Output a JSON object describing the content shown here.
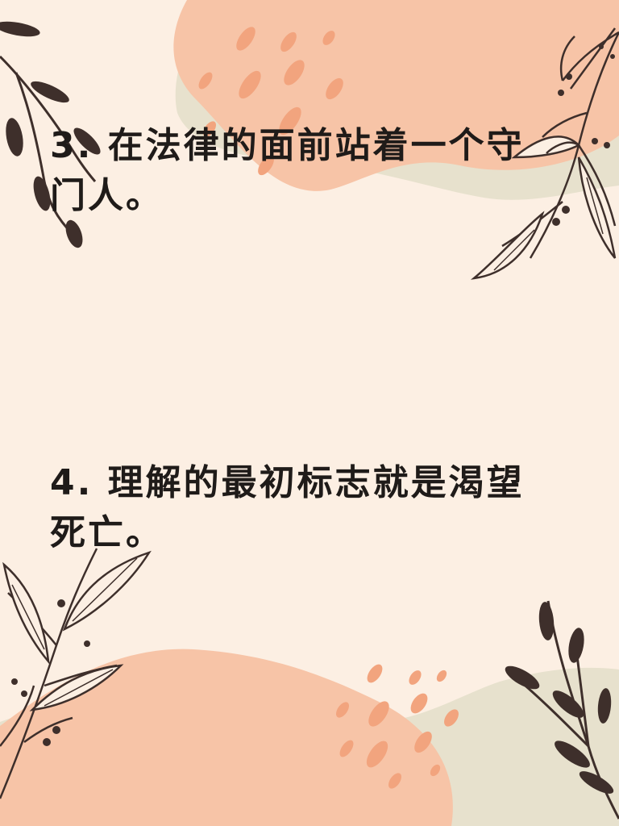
{
  "colors": {
    "background": "#fcefe3",
    "peach_blob": "#f7c4a7",
    "sage_blob": "#e7e1cd",
    "dot_accent": "#f2a47e",
    "branch": "#3e2f2b",
    "text": "#1f1b19"
  },
  "quotes": [
    {
      "text": "3. 在法律的面前站着一个守门人。"
    },
    {
      "text": "4. 理解的最初标志就是渴望死亡。"
    }
  ],
  "decorations": {
    "top_left_icon": "leafy-branch-icon",
    "top_right_icon": "leafy-branch-icon",
    "bottom_left_icon": "leafy-branch-icon",
    "bottom_right_icon": "leafy-branch-icon"
  }
}
